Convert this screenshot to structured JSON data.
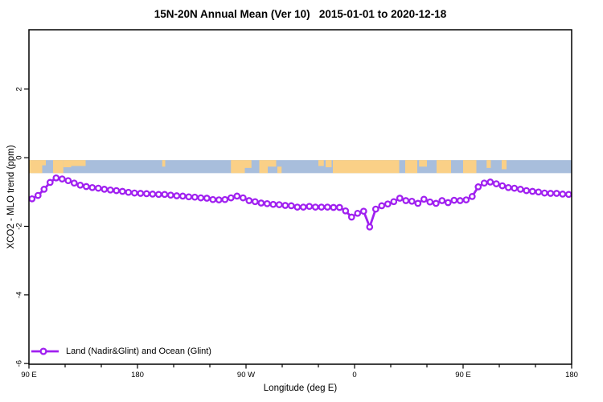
{
  "title": "15N-20N Annual Mean (Ver 10)   2015-01-01 to 2020-12-18",
  "colors": {
    "series_purple": "#A020F0",
    "ocean_blue": "#A8BEDC",
    "land_tan": "#FAD087",
    "axis_black": "#000000",
    "background": "#FFFFFF"
  },
  "legend": {
    "entries": [
      {
        "label": "Land (Nadir&Glint) and Ocean (Glint)",
        "color": "#A020F0",
        "marker": "open-circle-on-line"
      }
    ],
    "position": "bottom-left"
  },
  "chart_data": {
    "type": "line",
    "title": "15N-20N Annual Mean (Ver 10)   2015-01-01 to 2020-12-18",
    "xlabel": "Longitude (deg E)",
    "ylabel": "XCO2 - MLO trend (ppm)",
    "xlim": [
      90,
      540
    ],
    "ylim": [
      -6.02,
      3.73
    ],
    "grid": false,
    "x_major_ticks": [
      {
        "value": 90,
        "label": "90 E"
      },
      {
        "value": 180,
        "label": "180"
      },
      {
        "value": 270,
        "label": "90 W"
      },
      {
        "value": 360,
        "label": "0"
      },
      {
        "value": 450,
        "label": "90 E"
      },
      {
        "value": 540,
        "label": "180"
      }
    ],
    "x_minor_step": 30,
    "y_ticks": [
      {
        "value": 2,
        "label": "2"
      },
      {
        "value": 0,
        "label": "0"
      },
      {
        "value": -2,
        "label": "-2"
      },
      {
        "value": -4,
        "label": "-4"
      },
      {
        "value": -6,
        "label": "-6"
      }
    ],
    "series": [
      {
        "name": "Land (Nadir&Glint) and Ocean (Glint)",
        "color": "#A020F0",
        "marker": "open-circle",
        "x": [
          92.5,
          97.5,
          102.5,
          107.5,
          112.5,
          117.5,
          122.5,
          127.5,
          132.5,
          137.5,
          142.5,
          147.5,
          152.5,
          157.5,
          162.5,
          167.5,
          172.5,
          177.5,
          182.5,
          187.5,
          192.5,
          197.5,
          202.5,
          207.5,
          212.5,
          217.5,
          222.5,
          227.5,
          232.5,
          237.5,
          242.5,
          247.5,
          252.5,
          257.5,
          262.5,
          267.5,
          272.5,
          277.5,
          282.5,
          287.5,
          292.5,
          297.5,
          302.5,
          307.5,
          312.5,
          317.5,
          322.5,
          327.5,
          332.5,
          337.5,
          342.5,
          347.5,
          352.5,
          357.5,
          362.5,
          367.5,
          372.5,
          377.5,
          382.5,
          387.5,
          392.5,
          397.5,
          402.5,
          407.5,
          412.5,
          417.5,
          422.5,
          427.5,
          432.5,
          437.5,
          442.5,
          447.5,
          452.5,
          457.5,
          462.5,
          467.5,
          472.5,
          477.5,
          482.5,
          487.5,
          492.5,
          497.5,
          502.5,
          507.5,
          512.5,
          517.5,
          522.5,
          527.5,
          532.5,
          537.5
        ],
        "y": [
          -1.2,
          -1.1,
          -0.92,
          -0.72,
          -0.59,
          -0.62,
          -0.67,
          -0.74,
          -0.8,
          -0.84,
          -0.87,
          -0.89,
          -0.92,
          -0.94,
          -0.96,
          -0.98,
          -1.01,
          -1.03,
          -1.04,
          -1.05,
          -1.06,
          -1.07,
          -1.07,
          -1.09,
          -1.11,
          -1.12,
          -1.14,
          -1.15,
          -1.17,
          -1.18,
          -1.22,
          -1.23,
          -1.22,
          -1.17,
          -1.12,
          -1.17,
          -1.25,
          -1.28,
          -1.32,
          -1.34,
          -1.36,
          -1.37,
          -1.39,
          -1.4,
          -1.44,
          -1.44,
          -1.42,
          -1.44,
          -1.44,
          -1.44,
          -1.45,
          -1.45,
          -1.55,
          -1.73,
          -1.62,
          -1.56,
          -2.02,
          -1.5,
          -1.4,
          -1.35,
          -1.28,
          -1.18,
          -1.25,
          -1.27,
          -1.33,
          -1.21,
          -1.29,
          -1.33,
          -1.25,
          -1.31,
          -1.24,
          -1.25,
          -1.23,
          -1.13,
          -0.85,
          -0.74,
          -0.71,
          -0.76,
          -0.82,
          -0.87,
          -0.89,
          -0.92,
          -0.96,
          -0.98,
          -1.0,
          -1.03,
          -1.04,
          -1.04,
          -1.06,
          -1.07
        ]
      }
    ],
    "map_strip": {
      "description": "world-map band at 15N-20N latitude drawn along y=0",
      "value_top": -0.07,
      "value_bottom": -0.45,
      "ocean_color": "#A8BEDC",
      "land_color": "#FAD087",
      "land_patches": [
        {
          "lon0": 90,
          "lon1": 101,
          "top": 0,
          "bottom": 1
        },
        {
          "lon0": 101,
          "lon1": 104,
          "top": 0,
          "bottom": 0.4
        },
        {
          "lon0": 110,
          "lon1": 118.5,
          "top": 0,
          "bottom": 1
        },
        {
          "lon0": 118.5,
          "lon1": 125,
          "top": 0,
          "bottom": 0.55
        },
        {
          "lon0": 125,
          "lon1": 137,
          "top": 0,
          "bottom": 0.45
        },
        {
          "lon0": 200.5,
          "lon1": 203,
          "top": 0,
          "bottom": 0.5
        },
        {
          "lon0": 257.5,
          "lon1": 269,
          "top": 0,
          "bottom": 1
        },
        {
          "lon0": 269,
          "lon1": 274.5,
          "top": 0,
          "bottom": 0.6
        },
        {
          "lon0": 281,
          "lon1": 288,
          "top": 0,
          "bottom": 1
        },
        {
          "lon0": 288,
          "lon1": 295,
          "top": 0,
          "bottom": 0.5
        },
        {
          "lon0": 296,
          "lon1": 299.5,
          "top": 0.5,
          "bottom": 1
        },
        {
          "lon0": 330,
          "lon1": 334.5,
          "top": 0,
          "bottom": 0.45
        },
        {
          "lon0": 336,
          "lon1": 341,
          "top": 0,
          "bottom": 0.55
        },
        {
          "lon0": 342,
          "lon1": 397,
          "top": 0,
          "bottom": 1
        },
        {
          "lon0": 402,
          "lon1": 412,
          "top": 0,
          "bottom": 1
        },
        {
          "lon0": 413.5,
          "lon1": 420,
          "top": 0,
          "bottom": 0.5
        },
        {
          "lon0": 428,
          "lon1": 440,
          "top": 0,
          "bottom": 1
        },
        {
          "lon0": 450,
          "lon1": 461,
          "top": 0,
          "bottom": 1
        },
        {
          "lon0": 469.5,
          "lon1": 473,
          "top": 0,
          "bottom": 0.6
        },
        {
          "lon0": 482,
          "lon1": 486,
          "top": 0,
          "bottom": 0.7
        }
      ]
    }
  }
}
